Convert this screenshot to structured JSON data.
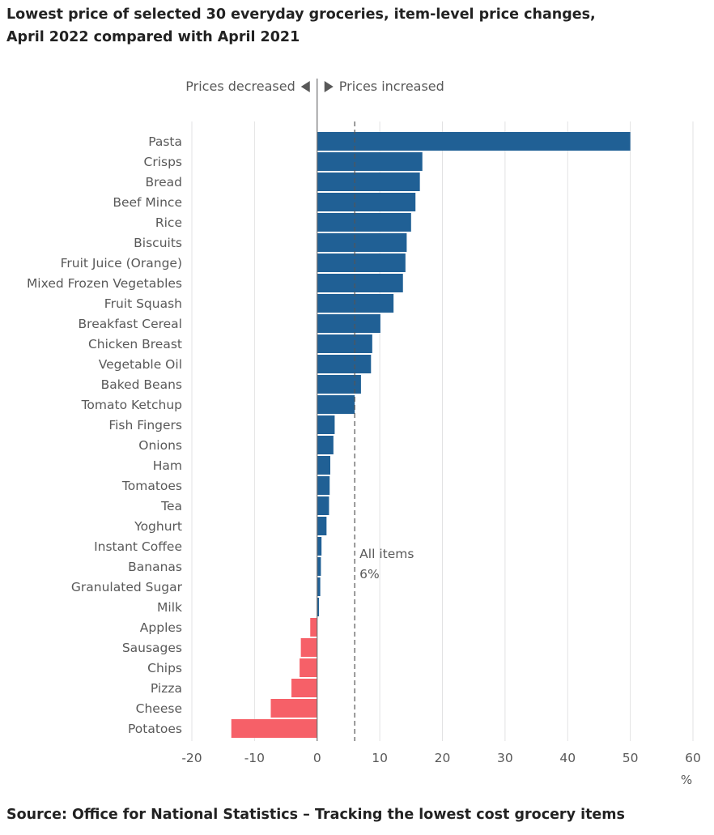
{
  "title_line1": "Lowest price of selected 30 everyday groceries, item-level price changes,",
  "title_line2": "April 2022 compared with April 2021",
  "source": "Source: Office for National Statistics – Tracking the lowest cost grocery items",
  "colors": {
    "increase": "#206095",
    "decrease": "#f66068",
    "grid": "#e2e2e3",
    "axis": "#707071",
    "text": "#595959"
  },
  "chart_data": {
    "type": "bar",
    "orientation": "horizontal",
    "title": "Lowest price of selected 30 everyday groceries, item-level price changes, April 2022 compared with April 2021",
    "direction_labels": {
      "decreased": "Prices decreased",
      "increased": "Prices increased"
    },
    "xlabel": "%",
    "xlim": [
      -20,
      60
    ],
    "xticks": [
      -20,
      -10,
      0,
      10,
      20,
      30,
      40,
      50,
      60
    ],
    "grid": true,
    "categories": [
      "Pasta",
      "Crisps",
      "Bread",
      "Beef Mince",
      "Rice",
      "Biscuits",
      "Fruit Juice (Orange)",
      "Mixed Frozen Vegetables",
      "Fruit Squash",
      "Breakfast Cereal",
      "Chicken Breast",
      "Vegetable Oil",
      "Baked Beans",
      "Tomato Ketchup",
      "Fish Fingers",
      "Onions",
      "Ham",
      "Tomatoes",
      "Tea",
      "Yoghurt",
      "Instant Coffee",
      "Bananas",
      "Granulated Sugar",
      "Milk",
      "Apples",
      "Sausages",
      "Chips",
      "Pizza",
      "Cheese",
      "Potatoes"
    ],
    "values": [
      50,
      16.8,
      16.4,
      15.7,
      15,
      14.3,
      14.1,
      13.7,
      12.2,
      10.1,
      8.8,
      8.6,
      7,
      6,
      2.8,
      2.6,
      2.1,
      2,
      1.9,
      1.5,
      0.7,
      0.6,
      0.5,
      0.3,
      -1.1,
      -2.6,
      -2.8,
      -4.1,
      -7.4,
      -13.7
    ],
    "reference_line": {
      "value": 6,
      "label_line1": "All items",
      "label_line2": "6%"
    }
  }
}
